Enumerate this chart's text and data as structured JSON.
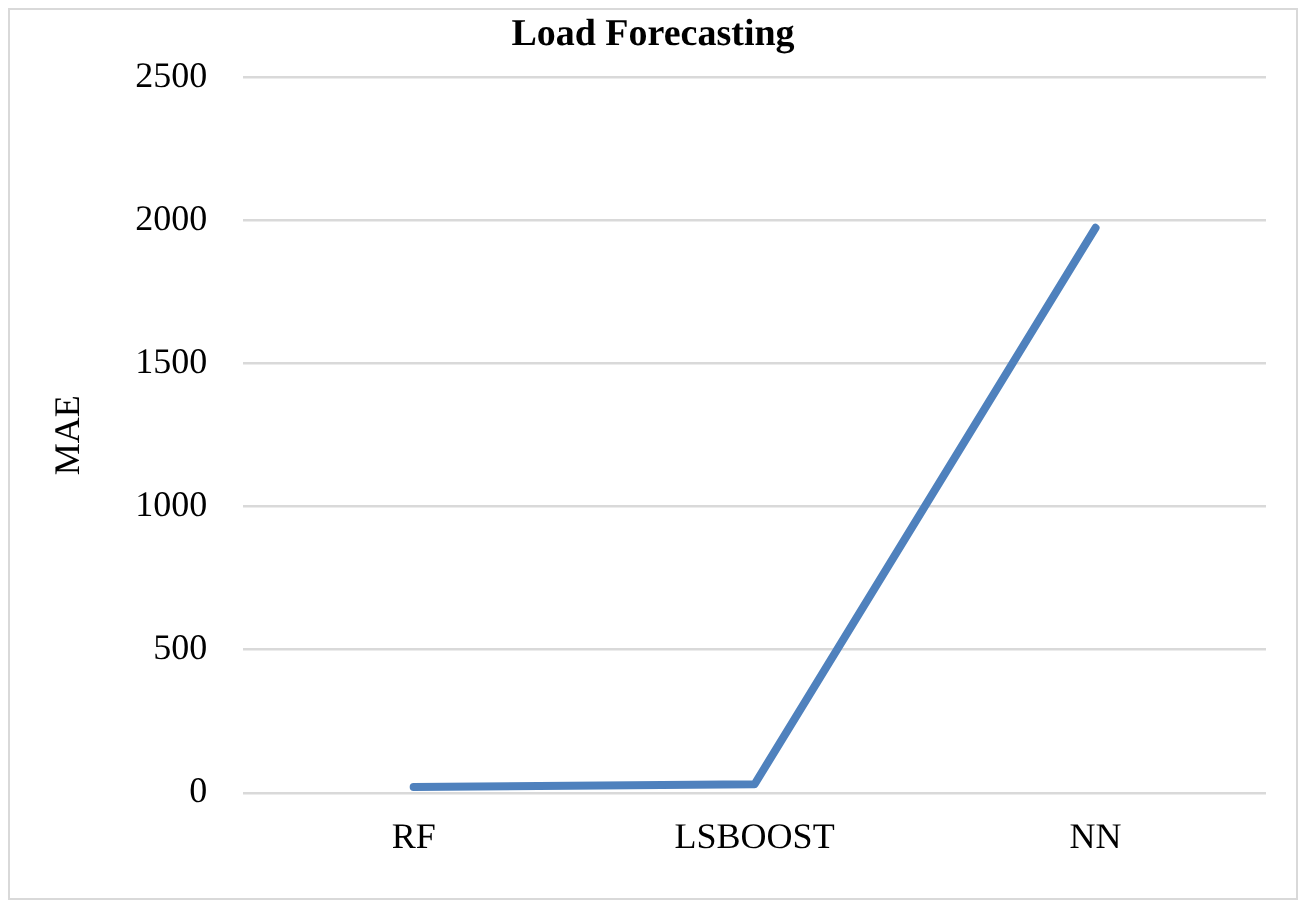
{
  "chart_data": {
    "type": "line",
    "title": "Load Forecasting",
    "ylabel": "MAE",
    "categories": [
      "RF",
      "LSBOOST",
      "NN"
    ],
    "series": [
      {
        "color": "#4f81bd",
        "values": [
          20,
          30,
          1975
        ]
      }
    ],
    "ylim": [
      0,
      2500
    ],
    "yticks": [
      0,
      500,
      1000,
      1500,
      2000,
      2500
    ],
    "grid": "y",
    "legend": false,
    "marker": "none"
  }
}
